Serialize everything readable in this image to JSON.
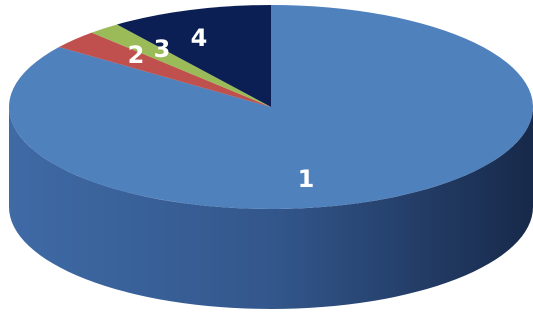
{
  "chart_data": {
    "type": "pie",
    "style": "3d",
    "title": "",
    "legend": "none",
    "categories": [
      "1",
      "2",
      "3",
      "4"
    ],
    "values": [
      85,
      3,
      2,
      10
    ],
    "colors": [
      "#4f81bd",
      "#c0504d",
      "#9bbb59",
      "#0c1f55"
    ],
    "data_labels": [
      "1",
      "2",
      "3",
      "4"
    ]
  }
}
